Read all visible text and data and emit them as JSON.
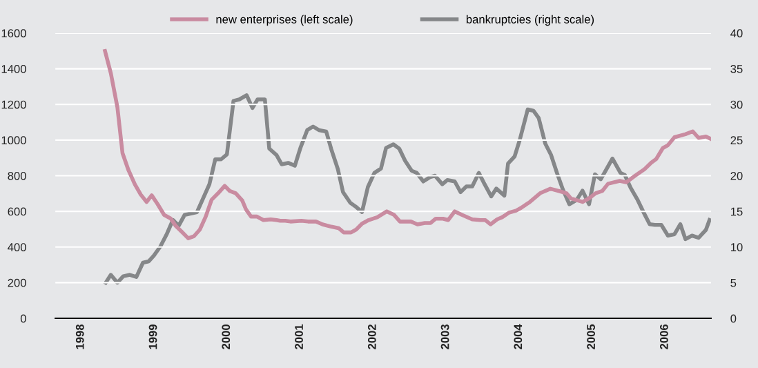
{
  "chart_data": {
    "type": "line",
    "legend": "top",
    "grid": "y",
    "line_style": "solid",
    "marker": "none",
    "xlim": [
      1997.65,
      2006.63
    ],
    "xticks": [
      1998,
      1999,
      2000,
      2001,
      2002,
      2003,
      2004,
      2005,
      2006
    ],
    "ylim": [
      0,
      1600
    ],
    "yticks": [
      0,
      200,
      400,
      600,
      800,
      1000,
      1200,
      1400,
      1600
    ],
    "y2lim": [
      0,
      40
    ],
    "y2ticks": [
      0,
      5,
      10,
      15,
      20,
      25,
      30,
      35,
      40
    ],
    "series": [
      {
        "name": "new enterprises (left scale)",
        "color": "#c98ba0",
        "x": [
          1998.33,
          1998.41,
          1998.5,
          1998.57,
          1998.65,
          1998.74,
          1998.82,
          1998.9,
          1998.97,
          1999.05,
          1999.14,
          1999.23,
          1999.3,
          1999.38,
          1999.47,
          1999.55,
          1999.63,
          1999.71,
          1999.79,
          1999.88,
          1999.97,
          2000.04,
          2000.12,
          2000.21,
          2000.26,
          2000.33,
          2000.41,
          2000.5,
          2000.6,
          2000.68,
          2000.73,
          2000.8,
          2000.87,
          2001.02,
          2001.11,
          2001.22,
          2001.31,
          2001.43,
          2001.53,
          2001.6,
          2001.7,
          2001.77,
          2001.85,
          2001.94,
          2002.06,
          2002.19,
          2002.29,
          2002.37,
          2002.52,
          2002.61,
          2002.71,
          2002.79,
          2002.86,
          2002.96,
          2003.03,
          2003.12,
          2003.22,
          2003.36,
          2003.47,
          2003.54,
          2003.61,
          2003.7,
          2003.77,
          2003.86,
          2003.96,
          2004.03,
          2004.15,
          2004.29,
          2004.43,
          2004.55,
          2004.65,
          2004.71,
          2004.87,
          2004.96,
          2005.05,
          2005.14,
          2005.22,
          2005.38,
          2005.47,
          2005.59,
          2005.72,
          2005.81,
          2005.88,
          2005.97,
          2006.04,
          2006.13,
          2006.28,
          2006.38,
          2006.46,
          2006.56,
          2006.62
        ],
        "values": [
          1500,
          1375,
          1184,
          927,
          833,
          751,
          694,
          653,
          690,
          641,
          580,
          560,
          518,
          486,
          449,
          461,
          498,
          571,
          665,
          702,
          743,
          714,
          702,
          661,
          612,
          571,
          571,
          551,
          555,
          551,
          547,
          547,
          543,
          547,
          543,
          543,
          527,
          514,
          506,
          482,
          482,
          498,
          531,
          551,
          567,
          600,
          580,
          543,
          543,
          527,
          535,
          535,
          559,
          559,
          551,
          600,
          580,
          555,
          551,
          551,
          527,
          555,
          567,
          592,
          604,
          620,
          653,
          702,
          727,
          714,
          702,
          673,
          653,
          673,
          702,
          714,
          755,
          771,
          763,
          800,
          837,
          873,
          894,
          955,
          971,
          1016,
          1033,
          1049,
          1012,
          1020,
          1008
        ]
      },
      {
        "name": "bankruptcies (right scale)",
        "color": "#858789",
        "axis": "y2",
        "x": [
          1998.34,
          1998.41,
          1998.5,
          1998.58,
          1998.67,
          1998.76,
          1998.85,
          1998.93,
          1999.0,
          1999.09,
          1999.18,
          1999.26,
          1999.34,
          1999.42,
          1999.59,
          1999.66,
          1999.76,
          1999.84,
          1999.92,
          2000.0,
          2000.09,
          2000.17,
          2000.27,
          2000.35,
          2000.42,
          2000.52,
          2000.58,
          2000.68,
          2000.75,
          2000.84,
          2000.93,
          2001.01,
          2001.1,
          2001.18,
          2001.26,
          2001.36,
          2001.43,
          2001.52,
          2001.59,
          2001.69,
          2001.76,
          2001.85,
          2001.93,
          2002.02,
          2002.11,
          2002.18,
          2002.28,
          2002.36,
          2002.44,
          2002.53,
          2002.6,
          2002.69,
          2002.78,
          2002.85,
          2002.95,
          2003.02,
          2003.12,
          2003.2,
          2003.28,
          2003.36,
          2003.45,
          2003.53,
          2003.62,
          2003.69,
          2003.8,
          2003.85,
          2003.94,
          2004.01,
          2004.12,
          2004.2,
          2004.27,
          2004.36,
          2004.44,
          2004.52,
          2004.6,
          2004.69,
          2004.79,
          2004.87,
          2004.96,
          2005.04,
          2005.12,
          2005.28,
          2005.39,
          2005.45,
          2005.53,
          2005.62,
          2005.71,
          2005.79,
          2005.86,
          2005.95,
          2006.04,
          2006.13,
          2006.21,
          2006.28,
          2006.37,
          2006.46,
          2006.56,
          2006.61
        ],
        "values": [
          5.0,
          6.1,
          5.0,
          5.9,
          6.1,
          5.8,
          7.8,
          8.0,
          8.8,
          10.1,
          11.9,
          13.8,
          13.0,
          14.5,
          14.9,
          16.5,
          18.8,
          22.3,
          22.3,
          23.0,
          30.5,
          30.7,
          31.3,
          29.5,
          30.7,
          30.7,
          23.8,
          22.9,
          21.6,
          21.8,
          21.4,
          24.0,
          26.4,
          26.9,
          26.4,
          26.2,
          23.7,
          20.9,
          17.7,
          16.2,
          15.7,
          14.9,
          18.4,
          20.4,
          21.0,
          23.9,
          24.4,
          23.8,
          22.1,
          20.7,
          20.4,
          19.2,
          19.8,
          20.0,
          18.8,
          19.4,
          19.2,
          17.7,
          18.5,
          18.5,
          20.4,
          18.8,
          17.1,
          18.2,
          17.2,
          21.7,
          22.7,
          25.0,
          29.3,
          29.1,
          28.1,
          24.5,
          22.9,
          20.4,
          18.1,
          16.0,
          16.6,
          17.9,
          16.0,
          20.2,
          19.5,
          22.4,
          20.4,
          20.1,
          18.3,
          16.7,
          14.8,
          13.2,
          13.1,
          13.1,
          11.6,
          11.8,
          13.2,
          11.1,
          11.6,
          11.3,
          12.4,
          13.8
        ]
      }
    ]
  }
}
